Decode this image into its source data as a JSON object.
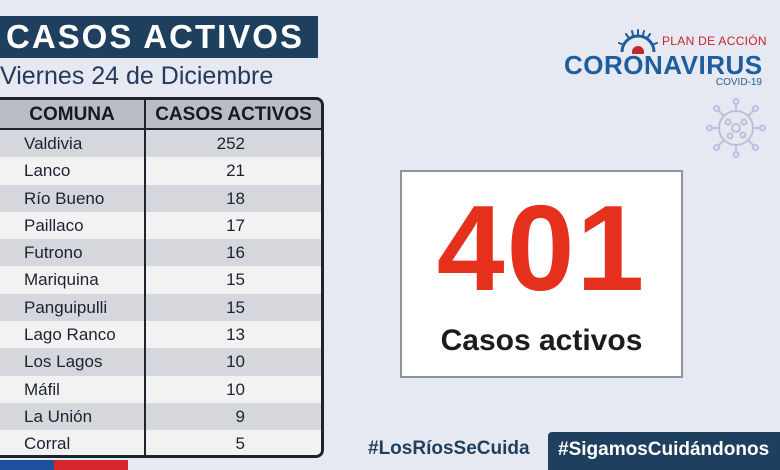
{
  "header": {
    "title": "CASOS ACTIVOS",
    "date": "Viernes 24  de Diciembre"
  },
  "table": {
    "columns": [
      "COMUNA",
      "CASOS ACTIVOS"
    ],
    "rows": [
      {
        "comuna": "Valdivia",
        "casos": "252"
      },
      {
        "comuna": "Lanco",
        "casos": "21"
      },
      {
        "comuna": "Río Bueno",
        "casos": "18"
      },
      {
        "comuna": "Paillaco",
        "casos": "17"
      },
      {
        "comuna": "Futrono",
        "casos": "16"
      },
      {
        "comuna": "Mariquina",
        "casos": "15"
      },
      {
        "comuna": "Panguipulli",
        "casos": "15"
      },
      {
        "comuna": "Lago Ranco",
        "casos": "13"
      },
      {
        "comuna": "Los Lagos",
        "casos": "10"
      },
      {
        "comuna": "Máfil",
        "casos": "10"
      },
      {
        "comuna": "La Unión",
        "casos": "9"
      },
      {
        "comuna": "Corral",
        "casos": "5"
      }
    ]
  },
  "logo": {
    "plan": "PLAN DE ACCIÓN",
    "main": "CORONAVIRUS",
    "sub": "COVID-19"
  },
  "total": {
    "number": "401",
    "label": "Casos activos"
  },
  "hashtags": {
    "left": "#LosRíosSeCuida",
    "right": "#SigamosCuidándonos"
  },
  "icons": {
    "sun": "sun-rays-icon",
    "virus": "virus-icon"
  },
  "colors": {
    "navy": "#1f3f5e",
    "red": "#e6301e",
    "blue": "#1d5e9e",
    "background": "#e6e8f2"
  }
}
